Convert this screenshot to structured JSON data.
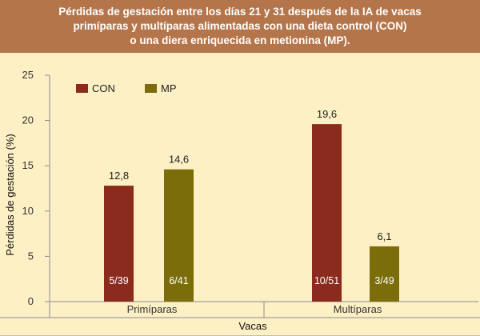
{
  "colors": {
    "header_bg": "#b5754a",
    "panel_bg": "#fdf0c4",
    "con": "#8b2b1e",
    "mp": "#7a6d0a",
    "axis": "#8b8b8b"
  },
  "chart_data": {
    "type": "bar",
    "title": "Pérdidas de gestación entre los días 21 y 31 después de la IA de vacas primíparas y multíparas alimentadas con una dieta control (CON) o una diera enriquecida en metionina (MP).",
    "title_lines": [
      "Pérdidas de gestación entre los días 21 y 31 después de la IA de vacas",
      "primíparas y multíparas alimentadas con una dieta control (CON)",
      "o una diera enriquecida en metionina (MP)."
    ],
    "xlabel": "Vacas",
    "ylabel": "Pérdidas de gestación (%)",
    "ylim": [
      0,
      25
    ],
    "yticks": [
      0,
      5,
      10,
      15,
      20,
      25
    ],
    "grid": false,
    "legend_position": "top-left",
    "categories": [
      "Primíparas",
      "Multíparas"
    ],
    "series": [
      {
        "name": "CON",
        "color": "#8b2b1e",
        "values": [
          12.8,
          19.6
        ],
        "value_labels": [
          "12,8",
          "19,6"
        ],
        "inner_labels": [
          "5/39",
          "10/51"
        ]
      },
      {
        "name": "MP",
        "color": "#7a6d0a",
        "values": [
          14.6,
          6.1
        ],
        "value_labels": [
          "14,6",
          "6,1"
        ],
        "inner_labels": [
          "6/41",
          "3/49"
        ]
      }
    ]
  }
}
